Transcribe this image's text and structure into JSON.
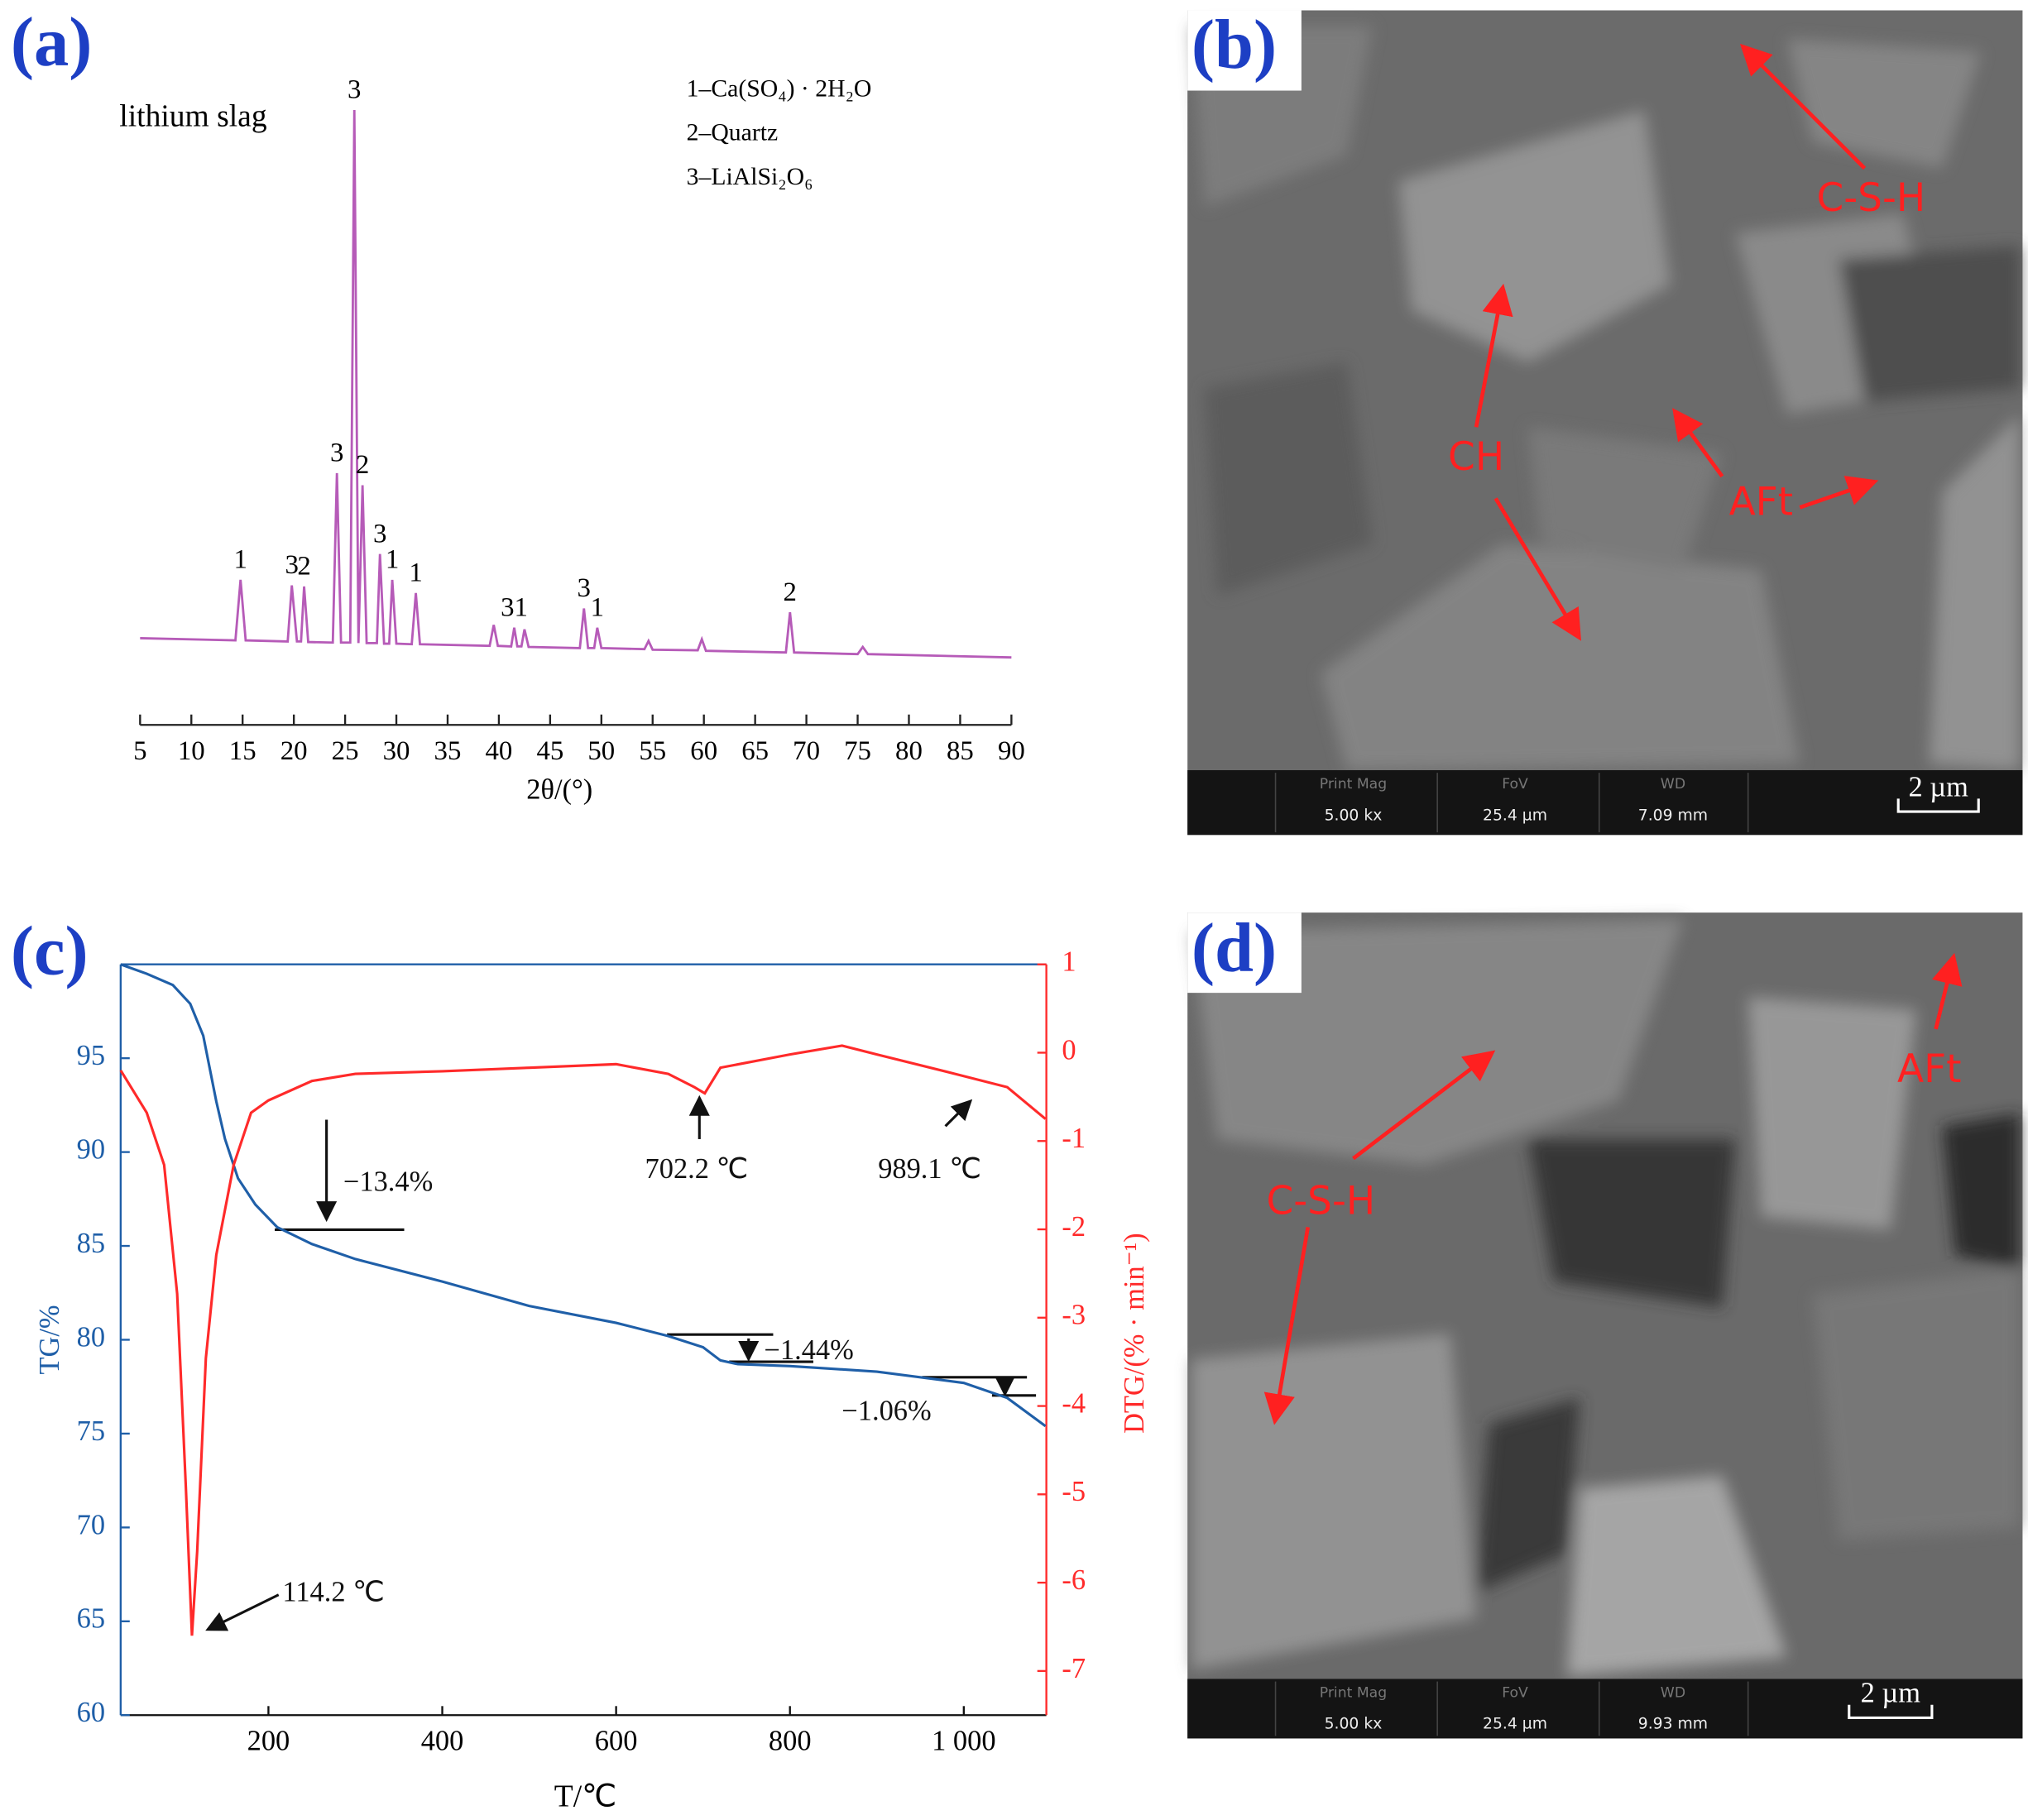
{
  "panel_labels": [
    "(a)",
    "(b)",
    "(c)",
    "(d)"
  ],
  "chart_data": [
    {
      "type": "line",
      "title": "lithium slag",
      "x_label": "2θ/(°)",
      "legend": [
        "1–Ca(SO₄) · 2H₂O",
        "2–Quartz",
        "3–LiAlSi₂O₆"
      ],
      "color": "#b65bb8",
      "x": [
        5,
        14.3,
        14.8,
        15.3,
        19.4,
        19.8,
        20.3,
        20.7,
        21.0,
        21.4,
        23.8,
        24.2,
        24.6,
        25.5,
        25.9,
        26.3,
        26.7,
        27.1,
        28.1,
        28.4,
        28.8,
        29.3,
        29.6,
        30.0,
        31.5,
        31.9,
        32.3,
        39.1,
        39.5,
        39.9,
        41.2,
        41.5,
        41.8,
        42.2,
        42.5,
        42.9,
        47.9,
        48.3,
        48.7,
        49.3,
        49.6,
        50.0,
        54.2,
        54.6,
        55.0,
        59.4,
        59.8,
        60.2,
        68.0,
        68.4,
        68.8,
        75.0,
        75.5,
        76.0,
        90
      ],
      "values": [
        4.0,
        3.6,
        14.6,
        3.6,
        3.4,
        13.6,
        3.4,
        3.4,
        13.4,
        3.3,
        3.2,
        34,
        3.2,
        3.2,
        100,
        3.1,
        31.8,
        3.1,
        3.1,
        19.3,
        3.0,
        3.0,
        14.6,
        3.0,
        2.9,
        12.2,
        2.9,
        2.6,
        6.4,
        2.6,
        2.5,
        5.9,
        2.5,
        2.5,
        5.6,
        2.4,
        2.2,
        9.4,
        2.2,
        2.2,
        5.9,
        2.2,
        2.0,
        3.5,
        1.9,
        1.8,
        3.8,
        1.7,
        1.4,
        8.7,
        1.4,
        1.1,
        2.4,
        1.1,
        0.5
      ],
      "xlim": [
        5,
        90
      ],
      "xticks": [
        5,
        10,
        15,
        20,
        25,
        30,
        35,
        40,
        45,
        50,
        55,
        60,
        65,
        70,
        75,
        80,
        85,
        90
      ],
      "ylim": [
        0,
        100
      ],
      "peak_labels": [
        {
          "label": "1",
          "x": 14.8
        },
        {
          "label": "3",
          "x": 19.8
        },
        {
          "label": "2",
          "x": 21.0
        },
        {
          "label": "3",
          "x": 24.2
        },
        {
          "label": "3",
          "x": 25.9
        },
        {
          "label": "2",
          "x": 26.7
        },
        {
          "label": "3",
          "x": 28.4
        },
        {
          "label": "1",
          "x": 29.6
        },
        {
          "label": "1",
          "x": 31.9
        },
        {
          "label": "31",
          "x": 41.5
        },
        {
          "label": "3",
          "x": 48.3
        },
        {
          "label": "1",
          "x": 49.6
        },
        {
          "label": "2",
          "x": 68.4
        }
      ]
    },
    {
      "type": "line",
      "x_label": "T/℃",
      "y_label": "TG/%",
      "y2_label": "DTG/(% · min⁻¹)",
      "series": [
        {
          "color": "#1f5fa8",
          "x": [
            30,
            60,
            90,
            110,
            125,
            140,
            150,
            165,
            185,
            210,
            250,
            300,
            400,
            500,
            600,
            660,
            700,
            720,
            740,
            800,
            900,
            1000,
            1050,
            1094
          ],
          "values": [
            100,
            99.5,
            98.9,
            97.9,
            96.2,
            92.7,
            90.7,
            88.6,
            87.2,
            86.0,
            85.1,
            84.3,
            83.1,
            81.8,
            80.9,
            80.2,
            79.6,
            78.9,
            78.7,
            78.6,
            78.3,
            77.7,
            76.9,
            75.4
          ]
        },
        {
          "color": "#ff2a2a",
          "axis": "y2",
          "x": [
            30,
            60,
            80,
            95,
            105,
            112,
            118,
            128,
            140,
            160,
            180,
            200,
            250,
            300,
            400,
            500,
            600,
            660,
            690,
            702,
            720,
            800,
            860,
            900,
            990,
            1050,
            1094
          ],
          "values": [
            -0.2,
            -0.68,
            -1.27,
            -2.73,
            -4.92,
            -6.6,
            -5.65,
            -3.46,
            -2.29,
            -1.27,
            -0.68,
            -0.54,
            -0.32,
            -0.24,
            -0.21,
            -0.17,
            -0.13,
            -0.24,
            -0.39,
            -0.46,
            -0.17,
            -0.02,
            0.08,
            -0.02,
            -0.24,
            -0.39,
            -0.75
          ]
        }
      ],
      "xlim": [
        30,
        1095
      ],
      "xticks": [
        200,
        400,
        600,
        800,
        {
          "value": 1000,
          "label": "1 000"
        }
      ],
      "ylim": [
        60,
        100
      ],
      "yticks": [
        60,
        65,
        70,
        75,
        80,
        85,
        90,
        95
      ],
      "y2lim": [
        -7.5,
        1
      ],
      "y2ticks": [
        1,
        0,
        -1,
        -2,
        -3,
        -4,
        -5,
        -6,
        -7
      ],
      "annotations": [
        "−13.4%",
        "702.2 ℃",
        "989.1 ℃",
        "−1.44%",
        "−1.06%",
        "114.2 ℃"
      ]
    }
  ],
  "sem_panels": [
    {
      "labels": [
        "C-S-H",
        "CH",
        "AFt"
      ],
      "info": [
        {
          "name": "Print Mag",
          "value": "5.00 kx"
        },
        {
          "name": "FoV",
          "value": "25.4 µm"
        },
        {
          "name": "WD",
          "value": "7.09 mm"
        }
      ],
      "scale_bar": "2 µm"
    },
    {
      "labels": [
        "C-S-H",
        "AFt"
      ],
      "info": [
        {
          "name": "Print Mag",
          "value": "5.00 kx"
        },
        {
          "name": "FoV",
          "value": "25.4 µm"
        },
        {
          "name": "WD",
          "value": "9.93 mm"
        }
      ],
      "scale_bar": "2 µm"
    }
  ]
}
